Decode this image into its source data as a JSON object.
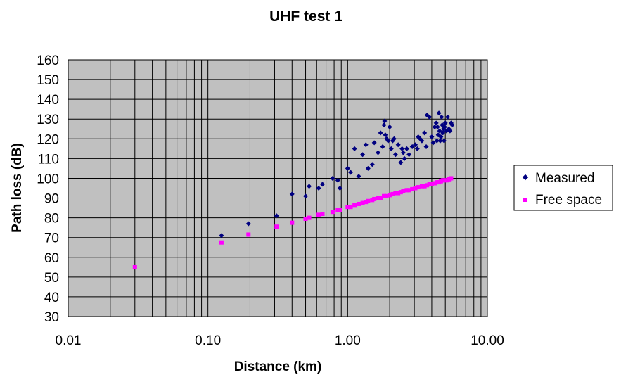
{
  "chart_data": {
    "type": "scatter",
    "title": "UHF test 1",
    "xlabel": "Distance (km)",
    "ylabel": "Path loss (dB)",
    "xscale": "log",
    "xlim": [
      0.01,
      10.0
    ],
    "ylim": [
      30,
      160
    ],
    "x_ticks": [
      "0.01",
      "0.10",
      "1.00",
      "10.00"
    ],
    "y_ticks": [
      "30",
      "40",
      "50",
      "60",
      "70",
      "80",
      "90",
      "100",
      "110",
      "120",
      "130",
      "140",
      "150",
      "160"
    ],
    "grid": true,
    "plot_background": "#c0c0c0",
    "legend_position": "right",
    "series": [
      {
        "name": "Measured",
        "marker": "diamond",
        "color": "#000080",
        "points": [
          [
            0.125,
            71
          ],
          [
            0.195,
            77
          ],
          [
            0.31,
            81
          ],
          [
            0.4,
            92
          ],
          [
            0.5,
            91
          ],
          [
            0.53,
            96
          ],
          [
            0.62,
            95
          ],
          [
            0.66,
            97
          ],
          [
            0.78,
            100
          ],
          [
            0.85,
            99
          ],
          [
            0.88,
            95
          ],
          [
            1.0,
            105
          ],
          [
            1.05,
            103
          ],
          [
            1.12,
            115
          ],
          [
            1.2,
            101
          ],
          [
            1.28,
            112
          ],
          [
            1.35,
            117
          ],
          [
            1.4,
            105
          ],
          [
            1.5,
            107
          ],
          [
            1.55,
            118
          ],
          [
            1.65,
            113
          ],
          [
            1.72,
            123
          ],
          [
            1.78,
            116
          ],
          [
            1.82,
            127
          ],
          [
            1.84,
            129
          ],
          [
            1.86,
            122
          ],
          [
            1.9,
            120
          ],
          [
            1.95,
            119
          ],
          [
            2.0,
            126
          ],
          [
            2.05,
            115
          ],
          [
            2.1,
            119
          ],
          [
            2.15,
            120
          ],
          [
            2.2,
            112
          ],
          [
            2.3,
            117
          ],
          [
            2.4,
            108
          ],
          [
            2.45,
            115
          ],
          [
            2.5,
            113
          ],
          [
            2.55,
            110
          ],
          [
            2.65,
            115
          ],
          [
            2.75,
            112
          ],
          [
            2.9,
            116
          ],
          [
            3.05,
            117
          ],
          [
            3.15,
            115
          ],
          [
            3.2,
            121
          ],
          [
            3.3,
            120
          ],
          [
            3.4,
            119
          ],
          [
            3.55,
            123
          ],
          [
            3.65,
            116
          ],
          [
            3.7,
            132
          ],
          [
            3.85,
            131
          ],
          [
            4.0,
            121
          ],
          [
            4.1,
            118
          ],
          [
            4.2,
            126
          ],
          [
            4.3,
            128
          ],
          [
            4.35,
            119
          ],
          [
            4.4,
            126
          ],
          [
            4.45,
            122
          ],
          [
            4.5,
            133
          ],
          [
            4.55,
            124
          ],
          [
            4.6,
            119
          ],
          [
            4.65,
            121
          ],
          [
            4.7,
            131
          ],
          [
            4.75,
            127
          ],
          [
            4.8,
            123
          ],
          [
            4.85,
            125
          ],
          [
            4.9,
            119
          ],
          [
            4.95,
            126
          ],
          [
            5.0,
            128
          ],
          [
            5.1,
            124
          ],
          [
            5.2,
            131
          ],
          [
            5.3,
            125
          ],
          [
            5.4,
            124
          ],
          [
            5.5,
            128
          ],
          [
            5.6,
            127
          ]
        ]
      },
      {
        "name": "Free space",
        "marker": "square",
        "color": "#ff00ff",
        "points": [
          [
            0.03,
            55
          ],
          [
            0.125,
            67.5
          ],
          [
            0.195,
            71.5
          ],
          [
            0.31,
            75.5
          ],
          [
            0.4,
            77.5
          ],
          [
            0.5,
            79.5
          ],
          [
            0.53,
            80
          ],
          [
            0.62,
            81.5
          ],
          [
            0.66,
            82
          ],
          [
            0.78,
            83
          ],
          [
            0.85,
            84
          ],
          [
            0.88,
            84
          ],
          [
            1.0,
            85.5
          ],
          [
            1.05,
            85.5
          ],
          [
            1.12,
            86.5
          ],
          [
            1.2,
            87
          ],
          [
            1.28,
            87.5
          ],
          [
            1.35,
            88
          ],
          [
            1.4,
            88.5
          ],
          [
            1.5,
            89
          ],
          [
            1.55,
            89.5
          ],
          [
            1.65,
            90
          ],
          [
            1.72,
            90
          ],
          [
            1.82,
            91
          ],
          [
            1.9,
            91
          ],
          [
            2.0,
            91.5
          ],
          [
            2.1,
            92
          ],
          [
            2.2,
            92.5
          ],
          [
            2.3,
            92.5
          ],
          [
            2.4,
            93
          ],
          [
            2.5,
            93.5
          ],
          [
            2.65,
            94
          ],
          [
            2.75,
            94
          ],
          [
            2.9,
            94.5
          ],
          [
            3.05,
            95
          ],
          [
            3.2,
            95.5
          ],
          [
            3.4,
            96
          ],
          [
            3.55,
            96
          ],
          [
            3.7,
            96.5
          ],
          [
            3.85,
            97
          ],
          [
            4.0,
            97
          ],
          [
            4.2,
            97.5
          ],
          [
            4.35,
            98
          ],
          [
            4.5,
            98
          ],
          [
            4.65,
            98.5
          ],
          [
            4.8,
            99
          ],
          [
            4.95,
            99
          ],
          [
            5.1,
            99
          ],
          [
            5.3,
            99.5
          ],
          [
            5.5,
            100
          ]
        ]
      }
    ]
  }
}
